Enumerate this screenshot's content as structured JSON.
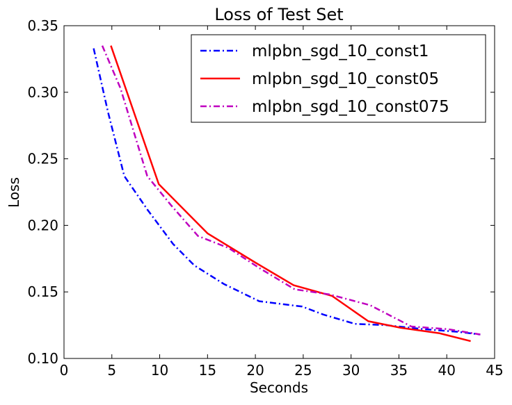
{
  "chart_data": {
    "type": "line",
    "title": "Loss of Test Set",
    "xlabel": "Seconds",
    "ylabel": "Loss",
    "xlim": [
      0,
      45
    ],
    "ylim": [
      0.1,
      0.35
    ],
    "xticks": [
      0,
      5,
      10,
      15,
      20,
      25,
      30,
      35,
      40,
      45
    ],
    "xtick_labels": [
      "0",
      "5",
      "10",
      "15",
      "20",
      "25",
      "30",
      "35",
      "40",
      "45"
    ],
    "yticks": [
      0.1,
      0.15,
      0.2,
      0.25,
      0.3,
      0.35
    ],
    "ytick_labels": [
      "0.10",
      "0.15",
      "0.20",
      "0.25",
      "0.30",
      "0.35"
    ],
    "grid": false,
    "legend_position": "top-right",
    "series": [
      {
        "name": "mlpbn_sgd_10_const1",
        "color": "#0000ff",
        "dash": "dashdot",
        "x": [
          3.1,
          4.6,
          6.3,
          8.8,
          11.4,
          13.6,
          16.7,
          20.4,
          24.9,
          27.1,
          30.4,
          33.7,
          37.6,
          41.2,
          43.5
        ],
        "y": [
          0.333,
          0.285,
          0.237,
          0.211,
          0.186,
          0.17,
          0.156,
          0.143,
          0.139,
          0.133,
          0.126,
          0.125,
          0.122,
          0.12,
          0.118
        ]
      },
      {
        "name": "mlpbn_sgd_10_const05",
        "color": "#ff0000",
        "dash": "solid",
        "x": [
          4.9,
          9.9,
          15.0,
          20.0,
          24.0,
          28.0,
          31.8,
          35.2,
          39.2,
          42.5
        ],
        "y": [
          0.335,
          0.231,
          0.194,
          0.172,
          0.155,
          0.147,
          0.128,
          0.123,
          0.119,
          0.113
        ]
      },
      {
        "name": "mlpbn_sgd_10_const075",
        "color": "#bf00bf",
        "dash": "dashdot",
        "x": [
          4.0,
          5.9,
          8.7,
          11.2,
          14.0,
          17.2,
          20.4,
          24.1,
          27.8,
          32.0,
          36.3,
          40.1,
          43.5
        ],
        "y": [
          0.335,
          0.303,
          0.237,
          0.215,
          0.192,
          0.183,
          0.168,
          0.152,
          0.148,
          0.14,
          0.124,
          0.122,
          0.118
        ]
      }
    ]
  }
}
